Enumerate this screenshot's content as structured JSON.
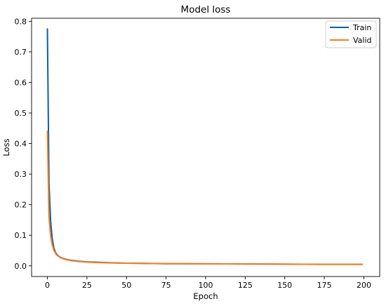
{
  "chart_data": {
    "type": "line",
    "title": "Model loss",
    "xlabel": "Epoch",
    "ylabel": "Loss",
    "xlim": [
      -10,
      210
    ],
    "ylim": [
      -0.035,
      0.81
    ],
    "xticks": [
      0,
      25,
      50,
      75,
      100,
      125,
      150,
      175,
      200
    ],
    "yticks": [
      0.0,
      0.1,
      0.2,
      0.3,
      0.4,
      0.5,
      0.6,
      0.7,
      0.8
    ],
    "ytick_labels": [
      "0.0",
      "0.1",
      "0.2",
      "0.3",
      "0.4",
      "0.5",
      "0.6",
      "0.7",
      "0.8"
    ],
    "grid": false,
    "legend_position": "top-right",
    "series": [
      {
        "name": "Train",
        "color": "#0c5ea8",
        "x": [
          0,
          1,
          2,
          3,
          4,
          5,
          6,
          7,
          8,
          10,
          12,
          15,
          20,
          25,
          30,
          40,
          50,
          60,
          75,
          100,
          125,
          150,
          175,
          199
        ],
        "y": [
          0.775,
          0.27,
          0.15,
          0.09,
          0.06,
          0.045,
          0.037,
          0.032,
          0.028,
          0.024,
          0.021,
          0.018,
          0.015,
          0.013,
          0.012,
          0.01,
          0.0085,
          0.008,
          0.007,
          0.0065,
          0.006,
          0.0055,
          0.005,
          0.005
        ]
      },
      {
        "name": "Valid",
        "color": "#f57f1e",
        "x": [
          0,
          1,
          2,
          3,
          4,
          5,
          6,
          7,
          8,
          10,
          12,
          15,
          20,
          25,
          30,
          40,
          50,
          60,
          75,
          100,
          125,
          150,
          175,
          199
        ],
        "y": [
          0.44,
          0.16,
          0.1,
          0.07,
          0.052,
          0.042,
          0.035,
          0.031,
          0.027,
          0.023,
          0.02,
          0.017,
          0.014,
          0.012,
          0.011,
          0.0095,
          0.0085,
          0.008,
          0.007,
          0.0065,
          0.006,
          0.0055,
          0.005,
          0.005
        ]
      }
    ]
  }
}
